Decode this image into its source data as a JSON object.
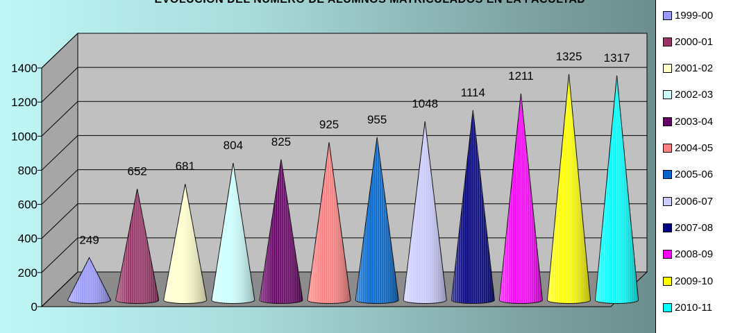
{
  "chart_data": {
    "type": "bar",
    "title": "EVOLUCIÓN DEL NÚMERO DE ALUMNOS MATRICULADOS EN LA FACULTAD",
    "categories": [
      "1999-00",
      "2000-01",
      "2001-02",
      "2002-03",
      "2003-04",
      "2004-05",
      "2005-06",
      "2006-07",
      "2007-08",
      "2008-09",
      "2009-10",
      "2010-11"
    ],
    "values": [
      249,
      652,
      681,
      804,
      825,
      925,
      955,
      1048,
      1114,
      1211,
      1325,
      1317
    ],
    "colors": [
      "#9999ff",
      "#993366",
      "#ffffcc",
      "#ccffff",
      "#660066",
      "#ff8080",
      "#0066cc",
      "#ccccff",
      "#000080",
      "#ff00ff",
      "#ffff00",
      "#00ffff"
    ],
    "yticks": [
      "0",
      "200",
      "400",
      "600",
      "800",
      "1000",
      "1200",
      "1400"
    ],
    "ylim": [
      0,
      1400
    ],
    "grid": true,
    "legend": "right",
    "shape": "cone"
  }
}
